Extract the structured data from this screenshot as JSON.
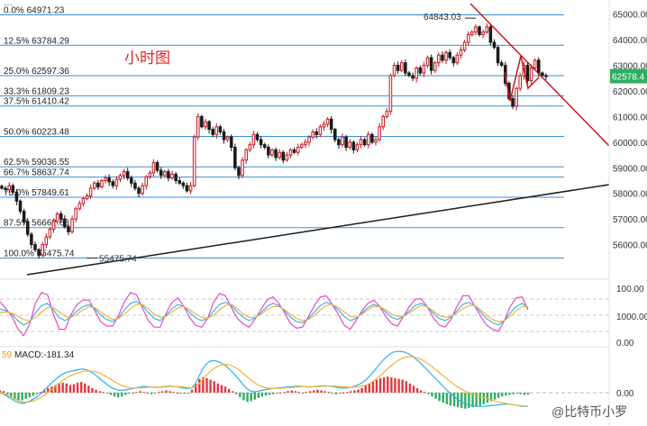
{
  "chart_data": [
    {
      "type": "candlestick",
      "annotation_title": "小时图",
      "y_range": [
        55000,
        65200
      ],
      "y_axis_ticks": [
        "65000.00",
        "64000.00",
        "63000.00",
        "62000.00",
        "61000.00",
        "60000.00",
        "59000.00",
        "58000.00",
        "57000.00",
        "56000.00"
      ],
      "current_price_label": "62578.4",
      "current_price": 62578.4,
      "high_label": "64843.03",
      "high_value": 64843.03,
      "low_label": "55475.74",
      "low_value": 55475.74,
      "fib_levels": [
        {
          "label": "0.0% 64971.23",
          "price": 64971.23
        },
        {
          "label": "12.5% 63784.29",
          "price": 63784.29
        },
        {
          "label": "25.0% 62597.36",
          "price": 62597.36
        },
        {
          "label": "33.3% 61809.23",
          "price": 61809.23
        },
        {
          "label": "37.5% 61410.42",
          "price": 61410.42
        },
        {
          "label": "50.0% 60223.48",
          "price": 60223.48
        },
        {
          "label": "62.5% 59036.55",
          "price": 59036.55
        },
        {
          "label": "66.7% 58637.74",
          "price": 58637.74
        },
        {
          "label": "75.0% 57849.61",
          "price": 57849.61
        },
        {
          "label": "87.5% 56662.68",
          "price": 56662.68
        },
        {
          "label": "100.0% 55475.74",
          "price": 55475.74
        }
      ],
      "closes": [
        58200,
        58150,
        58300,
        58050,
        57700,
        57300,
        56900,
        56400,
        56000,
        55800,
        55600,
        56000,
        56300,
        56600,
        56900,
        57200,
        57000,
        56700,
        56500,
        57000,
        57400,
        57600,
        57800,
        57900,
        58200,
        58400,
        58250,
        58500,
        58600,
        58450,
        58300,
        58550,
        58700,
        58850,
        58600,
        58400,
        58200,
        58000,
        58300,
        58650,
        58800,
        59200,
        58900,
        58700,
        58850,
        58600,
        58750,
        58500,
        58400,
        58300,
        58100,
        58300,
        60200,
        61000,
        60600,
        60800,
        60500,
        60300,
        60600,
        60400,
        60100,
        60200,
        59800,
        59000,
        58700,
        59300,
        59700,
        59900,
        60300,
        60100,
        59900,
        59800,
        59500,
        59700,
        59400,
        59600,
        59300,
        59500,
        59700,
        59600,
        59800,
        59900,
        60000,
        60200,
        60400,
        60300,
        60600,
        60700,
        60900,
        60500,
        60100,
        59900,
        60200,
        59800,
        60000,
        59700,
        59900,
        60100,
        59900,
        60300,
        60000,
        60100,
        60600,
        61000,
        61200,
        62600,
        63000,
        62800,
        63100,
        62700,
        62600,
        62500,
        62900,
        62700,
        63000,
        63300,
        62800,
        63100,
        63400,
        63200,
        63500,
        63300,
        63100,
        63400,
        63600,
        63900,
        64200,
        64300,
        64500,
        64200,
        64300,
        64500,
        63900,
        63700,
        63100,
        63000,
        62300,
        61700,
        61400,
        62100,
        62600,
        63000,
        62400,
        62900,
        63200,
        62700,
        62600,
        62578
      ],
      "ylabel_note": "",
      "oscillator": {
        "type": "line",
        "y_range": [
          0,
          100
        ],
        "y_axis_ticks": [
          "100.00",
          "0.00"
        ],
        "k": [
          62,
          58,
          52,
          40,
          32,
          38,
          55,
          68,
          72,
          60,
          45,
          40,
          48,
          58,
          66,
          70,
          62,
          50,
          42,
          38,
          46,
          60,
          72,
          76,
          68,
          55,
          44,
          40,
          50,
          62,
          70,
          66,
          55,
          45,
          40,
          44,
          58,
          70,
          74,
          68,
          56,
          46,
          40,
          45,
          55,
          66,
          72,
          68,
          58,
          46,
          38,
          36,
          44,
          56,
          68,
          74,
          70,
          60,
          48,
          40,
          44,
          54,
          64,
          70,
          66,
          56,
          46,
          42,
          48,
          58,
          68,
          72,
          66,
          54,
          44,
          40,
          46,
          58,
          70,
          74,
          68,
          56,
          44,
          36,
          32,
          40,
          54,
          66,
          72,
          64
        ],
        "d": [
          55,
          56,
          54,
          48,
          42,
          40,
          46,
          56,
          64,
          64,
          56,
          48,
          46,
          52,
          60,
          66,
          64,
          56,
          48,
          42,
          44,
          52,
          62,
          70,
          70,
          62,
          52,
          46,
          48,
          56,
          64,
          66,
          60,
          52,
          46,
          44,
          50,
          60,
          68,
          70,
          62,
          52,
          46,
          46,
          52,
          60,
          66,
          66,
          60,
          52,
          44,
          40,
          42,
          50,
          60,
          68,
          70,
          64,
          56,
          48,
          46,
          52,
          60,
          66,
          66,
          60,
          52,
          48,
          48,
          54,
          62,
          68,
          66,
          58,
          50,
          46,
          48,
          54,
          62,
          68,
          68,
          60,
          50,
          42,
          38,
          40,
          48,
          58,
          66,
          66
        ],
        "j": [
          75,
          62,
          48,
          25,
          12,
          34,
          73,
          92,
          88,
          52,
          24,
          24,
          52,
          70,
          78,
          78,
          58,
          38,
          30,
          30,
          50,
          76,
          92,
          88,
          64,
          40,
          28,
          28,
          54,
          74,
          82,
          66,
          45,
          31,
          28,
          44,
          74,
          90,
          86,
          64,
          44,
          34,
          28,
          43,
          61,
          78,
          84,
          72,
          54,
          34,
          26,
          28,
          48,
          68,
          84,
          86,
          70,
          52,
          32,
          24,
          40,
          58,
          72,
          78,
          66,
          48,
          34,
          30,
          48,
          66,
          80,
          80,
          66,
          46,
          32,
          28,
          42,
          66,
          86,
          86,
          68,
          48,
          32,
          24,
          20,
          40,
          66,
          82,
          84,
          60
        ]
      },
      "macd": {
        "label": "MACD:-181.34",
        "value": -181.34,
        "prefix_label": "59",
        "y_axis_ticks": [
          "1000.00",
          "0.00"
        ],
        "hist": [
          30,
          20,
          -20,
          -60,
          -90,
          -110,
          -100,
          -80,
          -60,
          -40,
          -20,
          10,
          40,
          60,
          80,
          100,
          120,
          130,
          120,
          100,
          110,
          130,
          140,
          120,
          90,
          60,
          40,
          20,
          10,
          -10,
          -30,
          -50,
          -60,
          -50,
          -30,
          -10,
          0,
          10,
          20,
          10,
          -10,
          -20,
          -10,
          10,
          20,
          30,
          20,
          10,
          0,
          -10,
          -10,
          0,
          40,
          120,
          180,
          200,
          190,
          170,
          150,
          120,
          100,
          80,
          50,
          20,
          -20,
          -60,
          -100,
          -120,
          -110,
          -90,
          -70,
          -50,
          -40,
          -30,
          -20,
          -10,
          0,
          10,
          20,
          30,
          20,
          10,
          0,
          10,
          20,
          30,
          40,
          30,
          20,
          10,
          -10,
          -20,
          -10,
          0,
          10,
          20,
          30,
          40,
          60,
          90,
          120,
          150,
          170,
          190,
          200,
          210,
          200,
          190,
          180,
          170,
          150,
          120,
          90,
          60,
          30,
          10,
          -20,
          -50,
          -80,
          -110,
          -130,
          -150,
          -170,
          -180,
          -190,
          -200,
          -210,
          -200,
          -190,
          -180,
          -170,
          -150,
          -130,
          -110,
          -90,
          -70,
          -50,
          -40,
          -30,
          -20,
          -10,
          -20,
          -30,
          -25
        ],
        "dif": [
          0,
          -20,
          -50,
          -80,
          -110,
          -130,
          -140,
          -130,
          -110,
          -80,
          -50,
          -10,
          40,
          90,
          140,
          180,
          220,
          250,
          270,
          280,
          290,
          300,
          310,
          300,
          280,
          250,
          210,
          170,
          130,
          90,
          60,
          40,
          30,
          30,
          40,
          50,
          60,
          70,
          80,
          80,
          75,
          70,
          70,
          75,
          80,
          85,
          85,
          80,
          70,
          60,
          55,
          60,
          100,
          200,
          300,
          370,
          410,
          420,
          410,
          390,
          360,
          320,
          270,
          220,
          160,
          100,
          50,
          20,
          10,
          20,
          30,
          40,
          50,
          55,
          60,
          65,
          70,
          75,
          80,
          85,
          85,
          80,
          75,
          75,
          80,
          85,
          90,
          90,
          85,
          80,
          70,
          60,
          60,
          65,
          75,
          90,
          110,
          140,
          180,
          230,
          290,
          350,
          410,
          460,
          500,
          530,
          540,
          540,
          530,
          510,
          480,
          440,
          400,
          350,
          300,
          250,
          200,
          150,
          100,
          50,
          0,
          -40,
          -80,
          -110,
          -140,
          -160,
          -170,
          -175,
          -180,
          -180,
          -175,
          -170,
          -165,
          -160,
          -155,
          -150,
          -150,
          -155,
          -165,
          -175,
          -180,
          -181
        ],
        "dea": [
          0,
          -10,
          -30,
          -55,
          -80,
          -105,
          -120,
          -125,
          -120,
          -105,
          -85,
          -60,
          -30,
          10,
          50,
          90,
          130,
          170,
          200,
          225,
          245,
          260,
          275,
          285,
          285,
          280,
          265,
          245,
          220,
          190,
          160,
          130,
          105,
          85,
          70,
          62,
          60,
          62,
          65,
          70,
          72,
          72,
          72,
          73,
          75,
          78,
          80,
          80,
          78,
          74,
          68,
          65,
          75,
          110,
          160,
          220,
          270,
          310,
          340,
          360,
          370,
          365,
          350,
          325,
          290,
          250,
          205,
          165,
          130,
          100,
          80,
          65,
          58,
          56,
          57,
          59,
          62,
          66,
          70,
          74,
          77,
          79,
          79,
          78,
          78,
          80,
          82,
          85,
          87,
          87,
          85,
          81,
          77,
          73,
          72,
          73,
          78,
          88,
          104,
          128,
          160,
          200,
          245,
          290,
          335,
          375,
          410,
          440,
          460,
          470,
          470,
          460,
          445,
          420,
          390,
          355,
          315,
          275,
          235,
          195,
          155,
          115,
          80,
          50,
          25,
          5,
          -15,
          -30,
          -45,
          -60,
          -75,
          -90,
          -105,
          -120,
          -130,
          -140,
          -150,
          -158,
          -165,
          -170,
          -174,
          -178
        ]
      }
    }
  ],
  "watermark": "@比特币小罗",
  "header_fragment": "…",
  "colors": {
    "up": "#c8161e",
    "down": "#1b1b1b",
    "fib": "#3a8fd6",
    "resistance": "#c8161e",
    "support": "#1b1b1b",
    "k": "#e64ac8",
    "d": "#f5b041",
    "j": "#3bb3e8",
    "dif": "#27b3e8",
    "dea": "#f2b233",
    "hist_up": "#e0393e",
    "hist_down": "#2eae61",
    "price_badge": "#2eae61"
  }
}
